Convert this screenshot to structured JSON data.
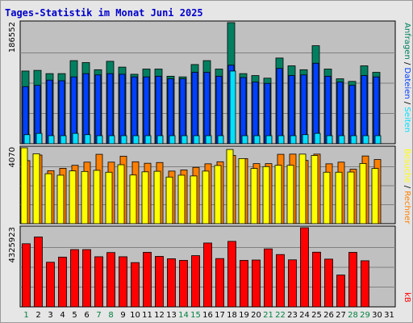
{
  "colors": {
    "title": "#0000cc",
    "plot_bg": "#c0c0c0",
    "grid": "#808080",
    "hits": "#008060",
    "files": "#0040ff",
    "pages": "#00e0ff",
    "visits": "#ff8000",
    "sites": "#ffff00",
    "kbytes": "#ff0000",
    "weekend_day": "#008040",
    "weekday": "#000000"
  },
  "chart_data": {
    "type": "bar",
    "title": "Tages-Statistik im Monat Juni 2025",
    "categories": [
      "1",
      "2",
      "3",
      "4",
      "5",
      "6",
      "7",
      "8",
      "9",
      "10",
      "11",
      "12",
      "13",
      "14",
      "15",
      "16",
      "17",
      "18",
      "19",
      "20",
      "21",
      "22",
      "23",
      "24",
      "25",
      "26",
      "27",
      "28",
      "29",
      "30",
      "31"
    ],
    "weekend_days": [
      1,
      7,
      8,
      14,
      15,
      21,
      22,
      28,
      29
    ],
    "panels": [
      {
        "id": "top",
        "max_label": "186552",
        "ymax": 186552,
        "series": [
          {
            "name": "Anfragen",
            "color_key": "hits",
            "values": [
              112000,
              113000,
              108000,
              108000,
              128000,
              125000,
              114000,
              127000,
              118000,
              107000,
              115000,
              115000,
              104000,
              103000,
              122000,
              128000,
              115000,
              186552,
              108000,
              105000,
              101000,
              132000,
              120000,
              114000,
              151000,
              115000,
              100000,
              96000,
              120000,
              110000,
              null
            ]
          },
          {
            "name": "Dateien",
            "color_key": "files",
            "values": [
              88000,
              90000,
              98000,
              97000,
              103000,
              108000,
              106000,
              108000,
              107000,
              103000,
              103000,
              104000,
              100000,
              100000,
              110000,
              110000,
              104000,
              121000,
              102000,
              95000,
              93000,
              116000,
              105000,
              106000,
              124000,
              104000,
              95000,
              90000,
              105000,
              103000,
              null
            ]
          },
          {
            "name": "Seiten",
            "color_key": "pages",
            "values": [
              14000,
              16000,
              10000,
              9000,
              16000,
              14000,
              11000,
              11000,
              10000,
              10000,
              10000,
              10000,
              9000,
              9000,
              11000,
              10000,
              11000,
              112000,
              11000,
              9000,
              9000,
              10000,
              10000,
              14000,
              16000,
              10000,
              10000,
              9000,
              10000,
              11000,
              null
            ]
          }
        ]
      },
      {
        "id": "middle",
        "max_label": "4070",
        "ymax": 4070,
        "series": [
          {
            "name": "Rechner",
            "color_key": "visits",
            "values": [
              3380,
              3680,
              2840,
              2970,
              3130,
              3300,
              3720,
              3300,
              3620,
              3320,
              3240,
              3280,
              2820,
              2880,
              3020,
              3210,
              3320,
              3660,
              3490,
              3220,
              3220,
              3720,
              3730,
              3390,
              3730,
              3210,
              3300,
              2920,
              3630,
              3440,
              null
            ]
          },
          {
            "name": "Besuche",
            "color_key": "sites",
            "values": [
              4070,
              3750,
              2680,
              2600,
              2830,
              2800,
              2860,
              2760,
              3160,
              2610,
              2780,
              2810,
              2500,
              2600,
              2560,
              2820,
              3120,
              3980,
              3490,
              2960,
              3060,
              3130,
              3130,
              3730,
              3660,
              2760,
              2760,
              2770,
              3230,
              2960,
              null
            ]
          }
        ]
      },
      {
        "id": "bottom",
        "max_label": "4325923",
        "ymax": 4325923,
        "series": [
          {
            "name": "kB",
            "color_key": "kbytes",
            "values": [
              3450000,
              3820000,
              2440000,
              2720000,
              3130000,
              3130000,
              2740000,
              2970000,
              2740000,
              2420000,
              2980000,
              2760000,
              2630000,
              2540000,
              2800000,
              3490000,
              2640000,
              3580000,
              2540000,
              2560000,
              3170000,
              2860000,
              2570000,
              4325923,
              2990000,
              2610000,
              1740000,
              2980000,
              2520000,
              null,
              null
            ]
          }
        ]
      }
    ],
    "right_labels": {
      "top": [
        {
          "text": "Anfragen",
          "color_key": "hits"
        },
        {
          "text": " / ",
          "color_key": "weekday"
        },
        {
          "text": "Dateien",
          "color_key": "files"
        },
        {
          "text": " / ",
          "color_key": "weekday"
        },
        {
          "text": "Seiten",
          "color_key": "pages"
        }
      ],
      "middle": [
        {
          "text": "Besuche",
          "color_key": "sites"
        },
        {
          "text": " / ",
          "color_key": "weekday"
        },
        {
          "text": "Rechner",
          "color_key": "visits"
        }
      ],
      "bottom": [
        {
          "text": "kB",
          "color_key": "kbytes"
        }
      ]
    }
  }
}
